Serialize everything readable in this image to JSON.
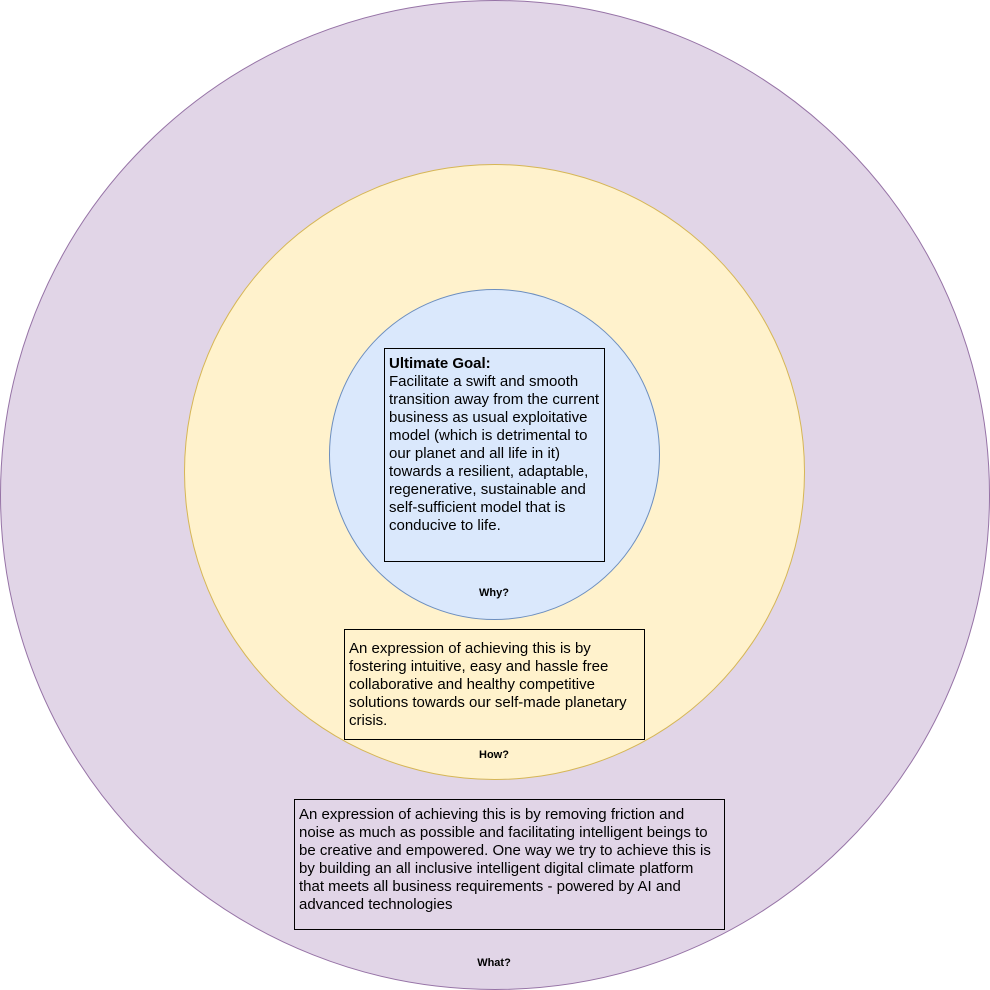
{
  "colors": {
    "what_fill": "#e1d5e7",
    "what_stroke": "#9673a6",
    "how_fill": "#fff2cc",
    "how_stroke": "#d6b656",
    "why_fill": "#dae8fc",
    "why_stroke": "#6c8ebf"
  },
  "why": {
    "label": "Why?",
    "title": "Ultimate Goal:",
    "text": "Facilitate a swift and smooth transition away from the current business as usual exploitative model (which is detrimental to our planet and all life in it) towards a resilient, adaptable, regenerative, sustainable and self-sufficient model that is conducive to life."
  },
  "how": {
    "label": "How?",
    "text": "An expression of achieving this is by fostering intuitive, easy and hassle free collaborative and healthy competitive solutions towards our self-made planetary crisis."
  },
  "what": {
    "label": "What?",
    "text": "An expression of achieving this is by removing friction and noise as much as possible and facilitating intelligent beings to be creative and empowered. One way we try to achieve this is by building an all inclusive intelligent digital climate platform that meets all business requirements - powered by AI and advanced technologies"
  }
}
